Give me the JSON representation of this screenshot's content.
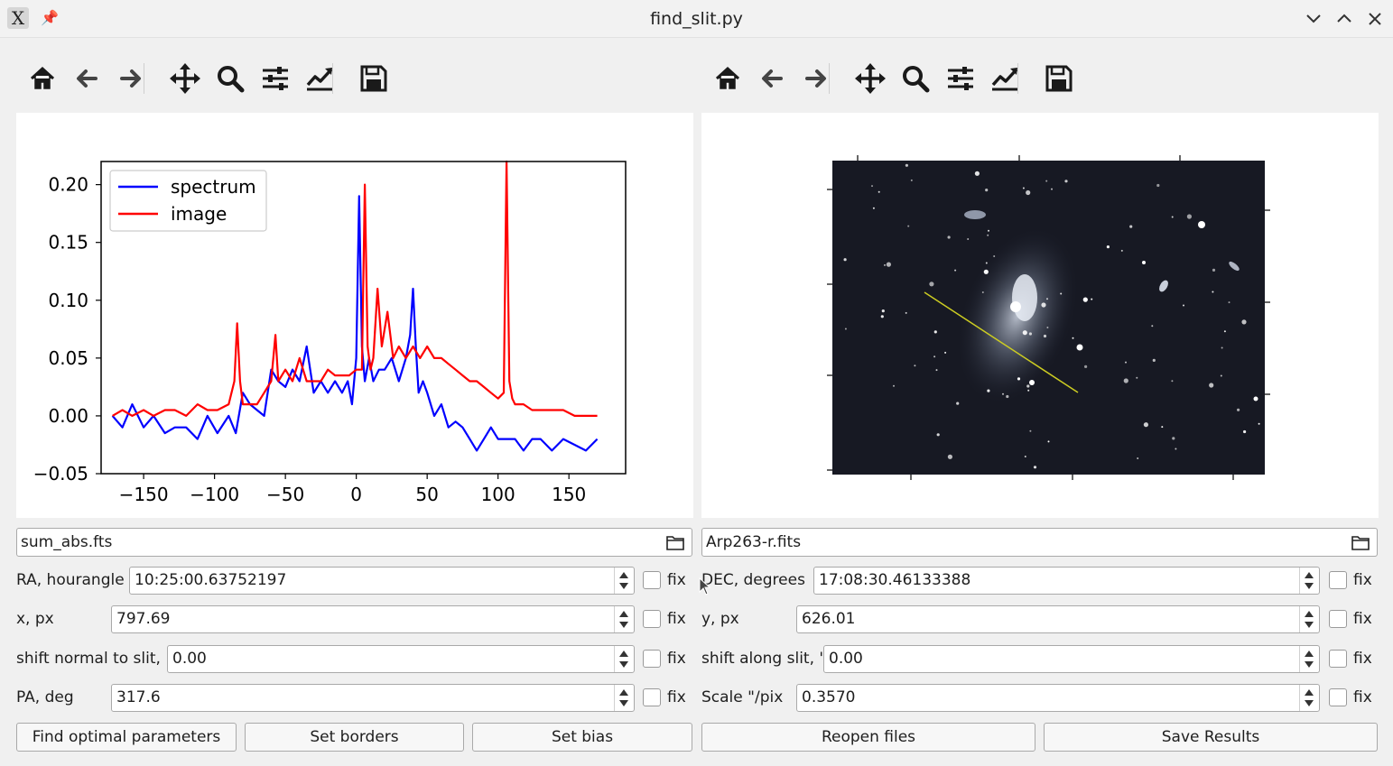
{
  "window": {
    "title": "find_slit.py",
    "app_icon_glyph": "X",
    "pin_glyph": "📌"
  },
  "toolbar_left": {
    "icons": [
      "home-icon",
      "back-arrow-icon",
      "forward-arrow-icon",
      "pan-icon",
      "zoom-icon",
      "configure-subplots-icon",
      "edit-axis-icon",
      "save-icon"
    ]
  },
  "toolbar_right": {
    "icons": [
      "home-icon",
      "back-arrow-icon",
      "forward-arrow-icon",
      "pan-icon",
      "zoom-icon",
      "configure-subplots-icon",
      "edit-axis-icon",
      "save-icon"
    ]
  },
  "chart_data": {
    "type": "line",
    "xlim": [
      -180,
      190
    ],
    "ylim": [
      -0.05,
      0.22
    ],
    "x_ticks": [
      -150,
      -100,
      -50,
      0,
      50,
      100,
      150
    ],
    "x_tick_labels": [
      "−150",
      "−100",
      "−50",
      "0",
      "50",
      "100",
      "150"
    ],
    "y_ticks": [
      -0.05,
      0.0,
      0.05,
      0.1,
      0.15,
      0.2
    ],
    "y_tick_labels": [
      "−0.05",
      "0.00",
      "0.05",
      "0.10",
      "0.15",
      "0.20"
    ],
    "legend": {
      "position": "upper-left",
      "entries": [
        "spectrum",
        "image"
      ]
    },
    "series": [
      {
        "name": "spectrum",
        "color": "#0000ff",
        "x": [
          -172,
          -165,
          -158,
          -150,
          -143,
          -135,
          -128,
          -120,
          -112,
          -105,
          -98,
          -90,
          -85,
          -80,
          -75,
          -70,
          -65,
          -60,
          -55,
          -50,
          -45,
          -40,
          -35,
          -30,
          -25,
          -20,
          -15,
          -10,
          -6,
          -3,
          0,
          2,
          4,
          6,
          9,
          12,
          16,
          20,
          25,
          30,
          35,
          38,
          40,
          42,
          44,
          47,
          50,
          55,
          60,
          65,
          70,
          75,
          80,
          85,
          90,
          95,
          100,
          106,
          112,
          118,
          124,
          130,
          138,
          146,
          154,
          162,
          170
        ],
        "y": [
          0.0,
          -0.01,
          0.01,
          -0.01,
          0.0,
          -0.015,
          -0.01,
          -0.01,
          -0.02,
          0.0,
          -0.015,
          0.0,
          -0.015,
          0.02,
          0.01,
          0.005,
          0.0,
          0.04,
          0.03,
          0.025,
          0.04,
          0.03,
          0.06,
          0.02,
          0.03,
          0.02,
          0.03,
          0.02,
          0.03,
          0.01,
          0.05,
          0.19,
          0.06,
          0.03,
          0.05,
          0.03,
          0.04,
          0.04,
          0.05,
          0.03,
          0.05,
          0.07,
          0.11,
          0.06,
          0.02,
          0.03,
          0.02,
          0.0,
          0.01,
          -0.01,
          -0.005,
          -0.01,
          -0.02,
          -0.03,
          -0.02,
          -0.01,
          -0.02,
          -0.02,
          -0.02,
          -0.03,
          -0.02,
          -0.02,
          -0.03,
          -0.02,
          -0.025,
          -0.03,
          -0.02
        ]
      },
      {
        "name": "image",
        "color": "#ff0000",
        "x": [
          -172,
          -165,
          -158,
          -150,
          -143,
          -135,
          -128,
          -120,
          -112,
          -105,
          -98,
          -90,
          -86,
          -84,
          -82,
          -80,
          -75,
          -70,
          -65,
          -60,
          -57,
          -55,
          -50,
          -45,
          -40,
          -35,
          -30,
          -25,
          -20,
          -15,
          -10,
          -5,
          0,
          4,
          6,
          8,
          10,
          12,
          15,
          18,
          22,
          26,
          30,
          35,
          40,
          45,
          50,
          55,
          60,
          65,
          70,
          75,
          80,
          85,
          90,
          95,
          100,
          104,
          106,
          108,
          110,
          112,
          118,
          124,
          130,
          138,
          146,
          154,
          162,
          170
        ],
        "y": [
          0.0,
          0.005,
          0.0,
          0.005,
          0.0,
          0.005,
          0.005,
          0.0,
          0.01,
          0.005,
          0.005,
          0.01,
          0.03,
          0.08,
          0.03,
          0.01,
          0.01,
          0.01,
          0.02,
          0.03,
          0.07,
          0.03,
          0.04,
          0.03,
          0.05,
          0.03,
          0.03,
          0.03,
          0.04,
          0.035,
          0.035,
          0.035,
          0.04,
          0.04,
          0.2,
          0.06,
          0.04,
          0.05,
          0.11,
          0.06,
          0.09,
          0.05,
          0.06,
          0.05,
          0.06,
          0.05,
          0.06,
          0.05,
          0.05,
          0.045,
          0.04,
          0.035,
          0.03,
          0.03,
          0.025,
          0.02,
          0.015,
          0.02,
          0.22,
          0.03,
          0.015,
          0.01,
          0.01,
          0.005,
          0.005,
          0.005,
          0.005,
          0.0,
          0.0,
          0.0
        ]
      }
    ]
  },
  "image_panel": {
    "alt_kind": "astronomical-image",
    "slit_color": "#cccc22"
  },
  "left_form": {
    "file": {
      "value": "sum_abs.fts"
    },
    "ra": {
      "label": "RA, hourangle",
      "value": "10:25:00.63752197",
      "fix_label": "fix"
    },
    "x": {
      "label": "x, px",
      "value": "797.69",
      "fix_label": "fix"
    },
    "shift_normal": {
      "label": "shift normal to slit, \"",
      "value": "0.00",
      "fix_label": "fix"
    },
    "pa": {
      "label": "PA, deg",
      "value": "317.6",
      "fix_label": "fix"
    }
  },
  "right_form": {
    "file": {
      "value": "Arp263-r.fits"
    },
    "dec": {
      "label": "DEC, degrees",
      "value": "17:08:30.46133388",
      "fix_label": "fix"
    },
    "y": {
      "label": "y, px",
      "value": "626.01",
      "fix_label": "fix"
    },
    "shift_along": {
      "label": "shift along slit, \"",
      "value": "0.00",
      "fix_label": "fix"
    },
    "scale": {
      "label": "Scale \"/pix",
      "value": "0.3570",
      "fix_label": "fix"
    }
  },
  "buttons": {
    "find_optimal": "Find optimal parameters",
    "set_borders": "Set borders",
    "set_bias": "Set bias",
    "reopen": "Reopen files",
    "save_results": "Save Results"
  }
}
